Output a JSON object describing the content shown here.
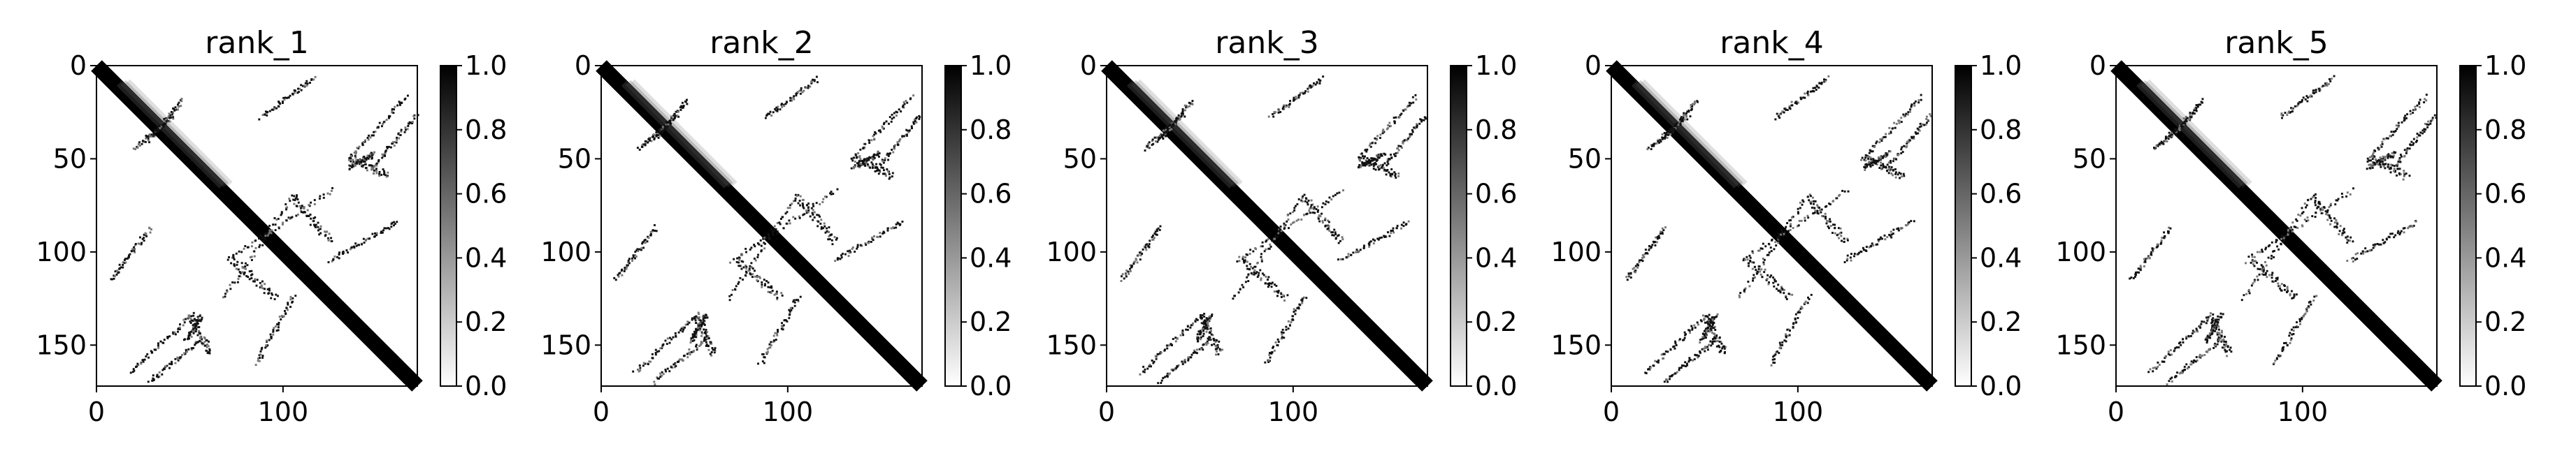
{
  "chart_data": [
    {
      "type": "heatmap",
      "title": "rank_1",
      "x_range": [
        0,
        172
      ],
      "y_range": [
        172,
        0
      ],
      "x_ticks": [
        0,
        100
      ],
      "y_ticks": [
        0,
        50,
        100,
        150
      ],
      "colorbar": {
        "range": [
          0.0,
          1.0
        ],
        "ticks": [
          "0.0",
          "0.2",
          "0.4",
          "0.6",
          "0.8",
          "1.0"
        ],
        "colormap": "Greys"
      },
      "features": {
        "diagonal": {
          "from": 0,
          "to": 172,
          "value": 1.0
        },
        "near_diagonal_blurs": [
          [
            10,
            55
          ],
          [
            55,
            65
          ]
        ],
        "contact_bands": [
          {
            "start": [
              28,
              40
            ],
            "end": [
              45,
              20
            ]
          },
          {
            "start": [
              8,
              115
            ],
            "end": [
              28,
              88
            ]
          },
          {
            "start": [
              148,
              55
            ],
            "end": [
              170,
              28
            ]
          },
          {
            "start": [
              60,
              155
            ],
            "end": [
              50,
              135
            ]
          },
          {
            "start": [
              18,
              165
            ],
            "end": [
              50,
              135
            ]
          },
          {
            "start": [
              85,
              160
            ],
            "end": [
              105,
              125
            ]
          },
          {
            "start": [
              70,
              105
            ],
            "end": [
              125,
              68
            ]
          },
          {
            "start": [
              105,
              72
            ],
            "end": [
              125,
              95
            ]
          },
          {
            "start": [
              135,
              55
            ],
            "end": [
              148,
              48
            ]
          }
        ]
      }
    },
    {
      "type": "heatmap",
      "title": "rank_2",
      "x_range": [
        0,
        172
      ],
      "y_range": [
        172,
        0
      ],
      "x_ticks": [
        0,
        100
      ],
      "y_ticks": [
        0,
        50,
        100,
        150
      ],
      "colorbar": {
        "range": [
          0.0,
          1.0
        ],
        "ticks": [
          "0.0",
          "0.2",
          "0.4",
          "0.6",
          "0.8",
          "1.0"
        ],
        "colormap": "Greys"
      }
    },
    {
      "type": "heatmap",
      "title": "rank_3",
      "x_range": [
        0,
        172
      ],
      "y_range": [
        172,
        0
      ],
      "x_ticks": [
        0,
        100
      ],
      "y_ticks": [
        0,
        50,
        100,
        150
      ],
      "colorbar": {
        "range": [
          0.0,
          1.0
        ],
        "ticks": [
          "0.0",
          "0.2",
          "0.4",
          "0.6",
          "0.8",
          "1.0"
        ],
        "colormap": "Greys"
      }
    },
    {
      "type": "heatmap",
      "title": "rank_4",
      "x_range": [
        0,
        172
      ],
      "y_range": [
        172,
        0
      ],
      "x_ticks": [
        0,
        100
      ],
      "y_ticks": [
        0,
        50,
        100,
        150
      ],
      "colorbar": {
        "range": [
          0.0,
          1.0
        ],
        "ticks": [
          "0.0",
          "0.2",
          "0.4",
          "0.6",
          "0.8",
          "1.0"
        ],
        "colormap": "Greys"
      }
    },
    {
      "type": "heatmap",
      "title": "rank_5",
      "x_range": [
        0,
        172
      ],
      "y_range": [
        172,
        0
      ],
      "x_ticks": [
        0,
        100
      ],
      "y_ticks": [
        0,
        50,
        100,
        150
      ],
      "colorbar": {
        "range": [
          0.0,
          1.0
        ],
        "ticks": [
          "0.0",
          "0.2",
          "0.4",
          "0.6",
          "0.8",
          "1.0"
        ],
        "colormap": "Greys"
      }
    }
  ]
}
